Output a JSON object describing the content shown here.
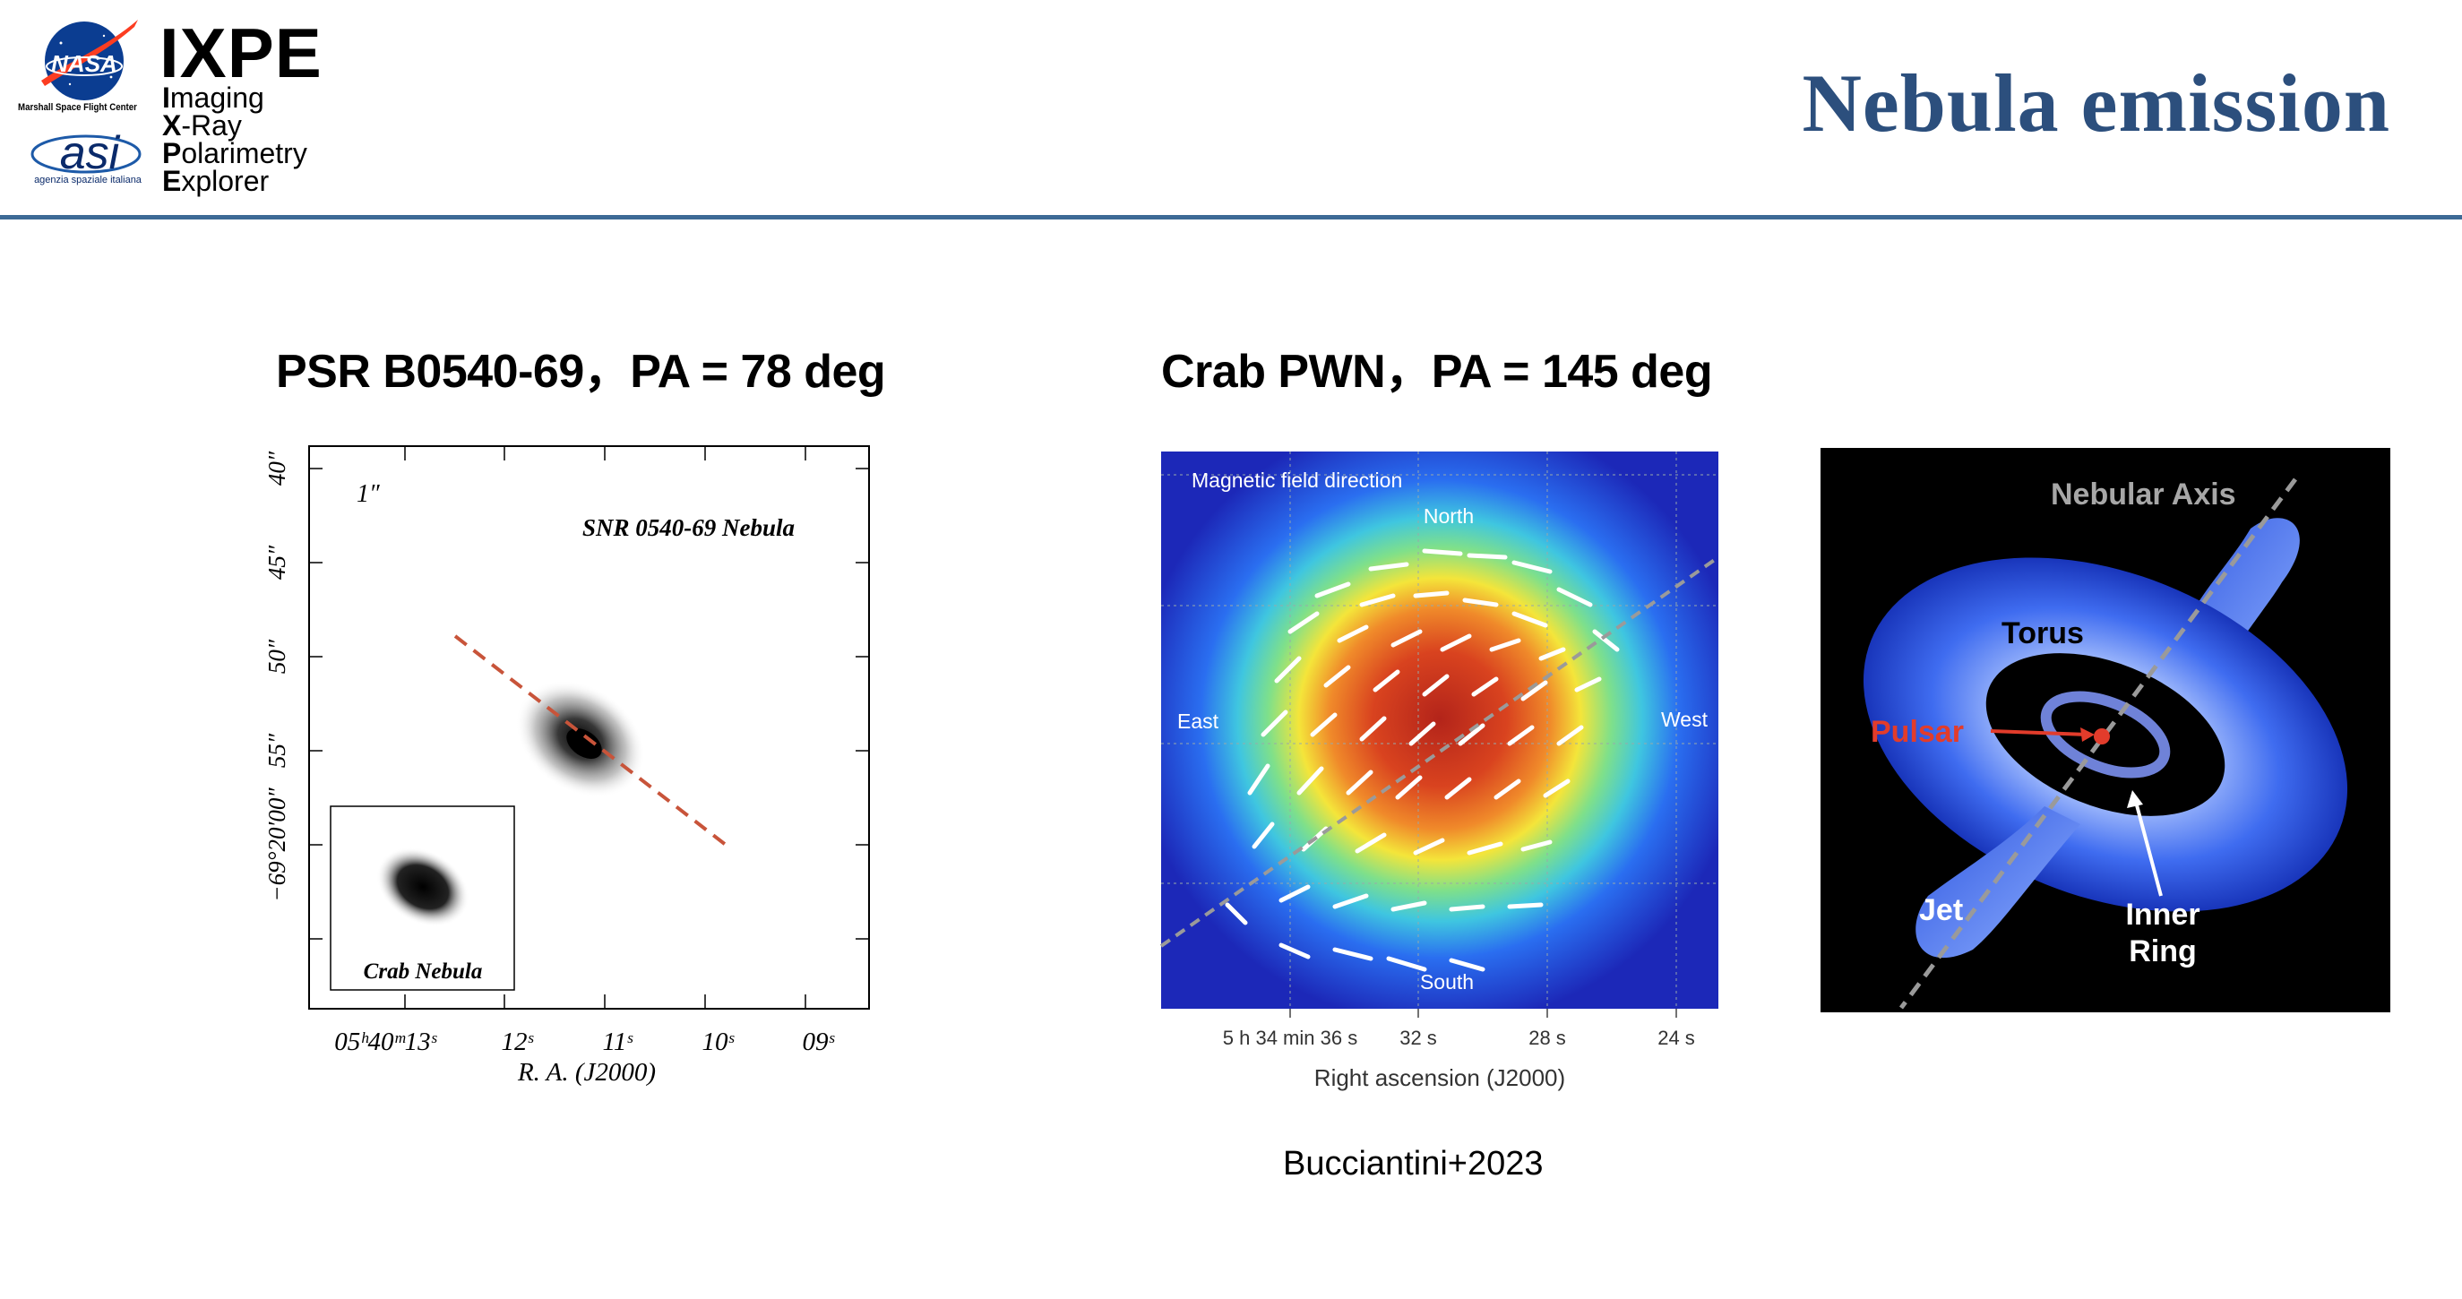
{
  "header": {
    "title": "Nebula emission",
    "logo": {
      "name": "IXPE",
      "words": [
        {
          "initial": "I",
          "rest": "maging"
        },
        {
          "initial": "X",
          "rest": "-Ray"
        },
        {
          "initial": "P",
          "rest": "olarimetry"
        },
        {
          "initial": "E",
          "rest": "xplorer"
        }
      ],
      "nasa_label": "NASA",
      "nasa_caption": "Marshall Space Flight Center",
      "asi_label": "asi",
      "asi_caption": "agenzia spaziale italiana"
    },
    "rule_color": "#3d6a96",
    "title_color": "#2c4f7d"
  },
  "left_panel": {
    "title": "PSR B0540-69，PA = 78 deg",
    "image": {
      "scale_label": "1″",
      "label": "SNR 0540-69 Nebula",
      "inset_label": "Crab Nebula",
      "y_ticks": [
        "40″",
        "45″",
        "50″",
        "55″",
        "−69°20′00″"
      ],
      "x_ticks": [
        "05ʰ40ᵐ13ˢ",
        "12ˢ",
        "11ˢ",
        "10ˢ",
        "09ˢ"
      ],
      "x_label": "R. A. (J2000)",
      "axis_line_color": "#c8543a"
    }
  },
  "middle_panel": {
    "title": "Crab PWN，PA = 145 deg",
    "image": {
      "header_label": "Magnetic field direction",
      "north": "North",
      "south": "South",
      "east": "East",
      "west": "West",
      "x_ticks": [
        "5 h 34 min 36 s",
        "32 s",
        "28 s",
        "24 s"
      ],
      "x_label": "Right ascension (J2000)"
    }
  },
  "right_panel": {
    "image": {
      "axis_label": "Nebular Axis",
      "torus_label": "Torus",
      "pulsar_label": "Pulsar",
      "jet_label": "Jet",
      "ring_label_1": "Inner",
      "ring_label_2": "Ring",
      "pulsar_color": "#e23c2b"
    }
  },
  "citation": "Bucciantini+2023"
}
